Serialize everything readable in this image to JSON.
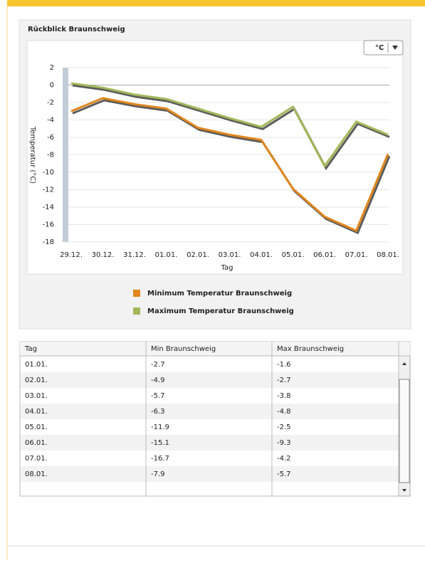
{
  "panel_title": "Rückblick Braunschweig",
  "unit_button": "°C",
  "chart_data": {
    "type": "line",
    "x_label": "Tag",
    "y_label": "Temperatur (°C)",
    "categories": [
      "29.12.",
      "30.12.",
      "31.12.",
      "01.01.",
      "02.01.",
      "03.01.",
      "04.01.",
      "05.01.",
      "06.01.",
      "07.01.",
      "08.01."
    ],
    "series": [
      {
        "name": "Minimum Temperatur Braunschweig",
        "color": "#e0861c",
        "values": [
          -3,
          -1.5,
          -2.2,
          -2.7,
          -4.9,
          -5.7,
          -6.3,
          -11.9,
          -15.1,
          -16.7,
          -7.9
        ]
      },
      {
        "name": "Maximum Temperatur Braunschweig",
        "color": "#a1b85a",
        "values": [
          0.2,
          -0.3,
          -1.1,
          -1.6,
          -2.7,
          -3.8,
          -4.8,
          -2.5,
          -9.3,
          -4.2,
          -5.7
        ]
      }
    ],
    "ylim": [
      -18,
      2
    ],
    "yticks": [
      -18,
      -16,
      -14,
      -12,
      -10,
      -8,
      -6,
      -4,
      -2,
      0,
      2
    ],
    "grid": true
  },
  "table": {
    "headers": [
      "Tag",
      "Min Braunschweig",
      "Max Braunschweig"
    ],
    "rows": [
      [
        "01.01.",
        "-2.7",
        "-1.6"
      ],
      [
        "02.01.",
        "-4.9",
        "-2.7"
      ],
      [
        "03.01.",
        "-5.7",
        "-3.8"
      ],
      [
        "04.01.",
        "-6.3",
        "-4.8"
      ],
      [
        "05.01.",
        "-11.9",
        "-2.5"
      ],
      [
        "06.01.",
        "-15.1",
        "-9.3"
      ],
      [
        "07.01.",
        "-16.7",
        "-4.2"
      ],
      [
        "08.01.",
        "-7.9",
        "-5.7"
      ]
    ]
  }
}
